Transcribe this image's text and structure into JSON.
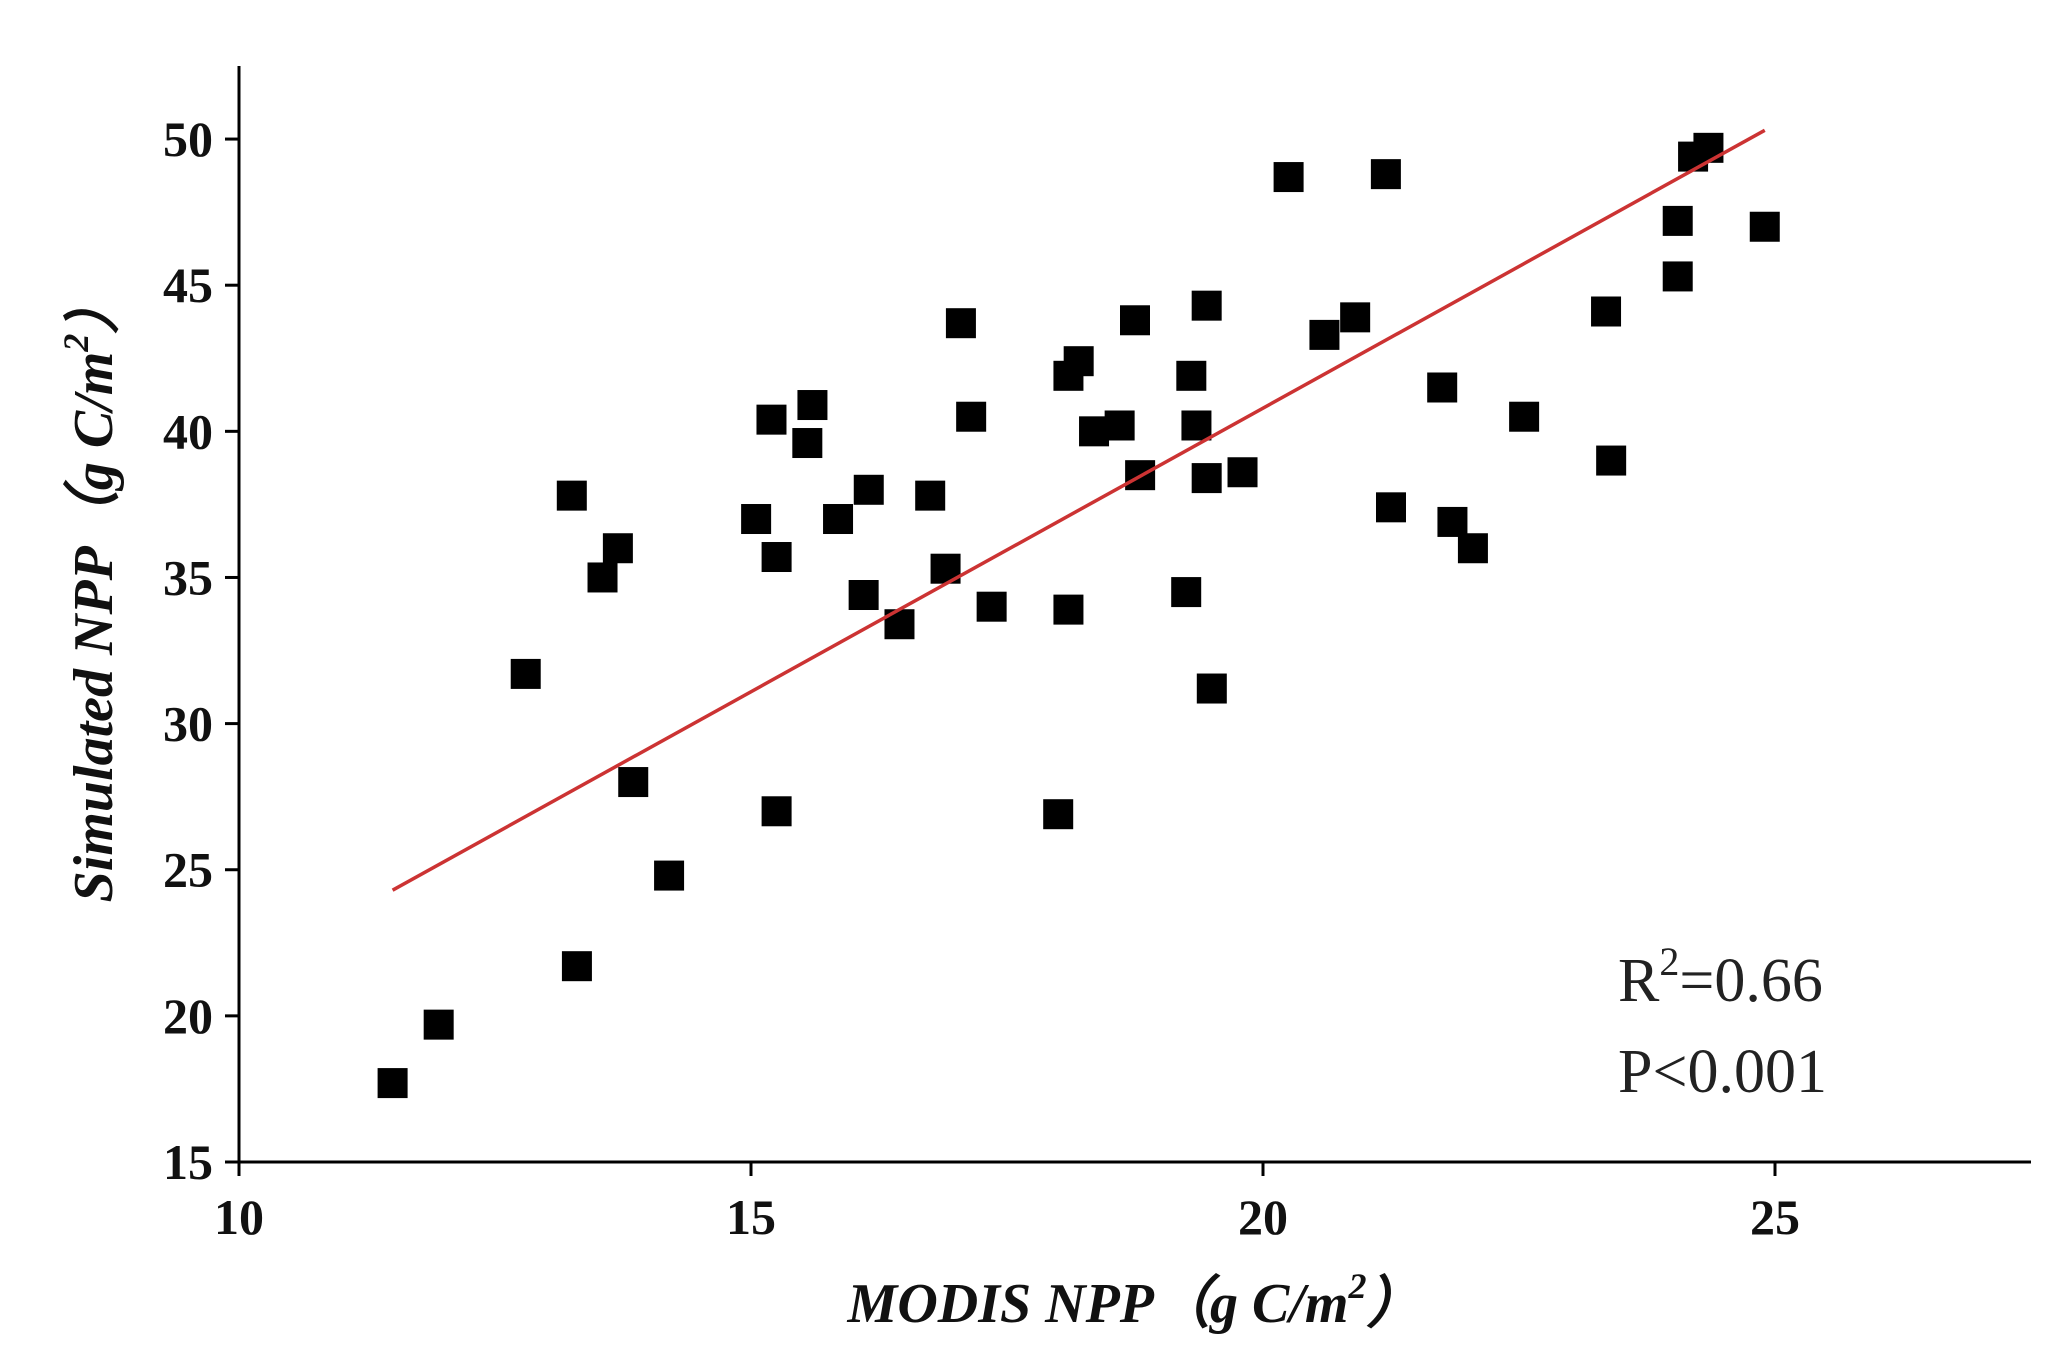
{
  "chart_data": {
    "type": "scatter",
    "title": "",
    "xlabel": {
      "main": "MODIS NPP（g C/m",
      "sup": "2",
      "close": "）"
    },
    "ylabel": {
      "main": "Simulated NPP（g C/m",
      "sup": "2",
      "close": "）"
    },
    "xlim": [
      10,
      27.5
    ],
    "ylim": [
      15,
      52.5
    ],
    "xticks": [
      10,
      15,
      20,
      25
    ],
    "yticks": [
      15,
      20,
      25,
      30,
      35,
      40,
      45,
      50
    ],
    "xtick_labels": [
      "10",
      "15",
      "20",
      "25"
    ],
    "ytick_labels": [
      "15",
      "20",
      "25",
      "30",
      "35",
      "40",
      "45",
      "50"
    ],
    "grid": false,
    "series": [
      {
        "marker": "square",
        "color": "#000000",
        "x": [
          11.5,
          11.95,
          12.8,
          13.25,
          13.3,
          13.55,
          13.7,
          13.85,
          14.2,
          15.05,
          15.2,
          15.25,
          15.25,
          15.55,
          15.6,
          15.85,
          16.1,
          16.15,
          16.45,
          16.75,
          16.9,
          17.05,
          17.15,
          17.35,
          18.0,
          18.1,
          18.1,
          18.2,
          18.35,
          18.6,
          18.75,
          18.8,
          19.25,
          19.3,
          19.35,
          19.45,
          19.45,
          19.5,
          19.8,
          20.25,
          20.6,
          20.9,
          21.2,
          21.25,
          21.75,
          21.85,
          22.05,
          22.55,
          23.35,
          23.4,
          24.05,
          24.05,
          24.2,
          24.35,
          24.9
        ],
        "y": [
          17.7,
          19.7,
          31.7,
          37.8,
          21.7,
          35.0,
          36.0,
          28.0,
          24.8,
          37.0,
          40.4,
          35.7,
          27.0,
          39.6,
          40.9,
          37.0,
          34.4,
          38.0,
          33.4,
          37.8,
          35.3,
          43.7,
          40.5,
          34.0,
          26.9,
          41.9,
          33.9,
          42.4,
          40.0,
          40.2,
          43.8,
          38.5,
          34.5,
          41.9,
          40.2,
          44.3,
          38.4,
          31.2,
          38.6,
          48.7,
          43.3,
          43.9,
          48.8,
          37.4,
          41.5,
          36.9,
          36.0,
          40.5,
          44.1,
          39.0,
          47.2,
          45.3,
          49.4,
          49.7,
          47.0
        ]
      }
    ],
    "fit_line": {
      "x": [
        11.5,
        24.9
      ],
      "y": [
        24.3,
        50.3
      ],
      "color": "#cc3333"
    },
    "annotations": {
      "r2_prefix": "R",
      "r2_sup": "2",
      "r2_value": "=0.66",
      "p_value": "P<0.001"
    }
  }
}
